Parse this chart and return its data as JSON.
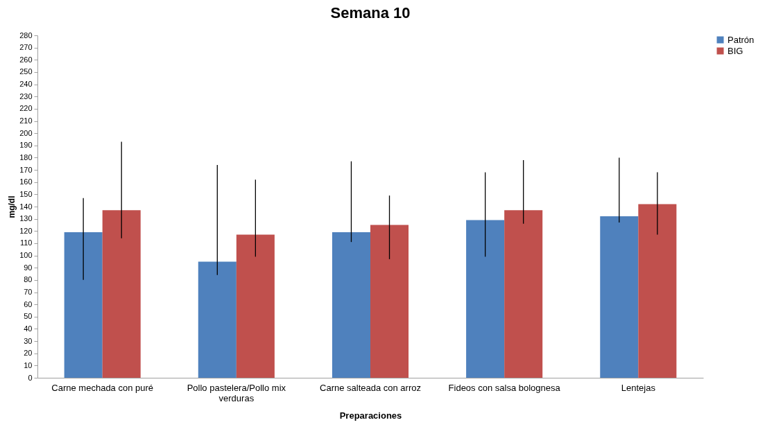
{
  "chart_data": {
    "type": "bar",
    "title": "Semana 10",
    "xlabel": "Preparaciones",
    "ylabel": "mg/dl",
    "categories": [
      "Carne mechada con puré",
      "Pollo pastelera/Pollo mix verduras",
      "Carne salteada con arroz",
      "Fideos con salsa bolognesa",
      "Lentejas"
    ],
    "series": [
      {
        "name": "Patrón",
        "color": "#4f81bd",
        "values": [
          119,
          95,
          119,
          129,
          132
        ],
        "errors": [
          [
            80,
            147
          ],
          [
            84,
            174
          ],
          [
            111,
            177
          ],
          [
            99,
            168
          ],
          [
            127,
            180
          ]
        ]
      },
      {
        "name": "BIG",
        "color": "#c0504d",
        "values": [
          137,
          117,
          125,
          137,
          142
        ],
        "errors": [
          [
            114,
            193
          ],
          [
            99,
            162
          ],
          [
            97,
            149
          ],
          [
            126,
            178
          ],
          [
            117,
            168
          ]
        ]
      }
    ],
    "ylim": [
      0,
      280
    ],
    "yticks": [
      0,
      10,
      20,
      30,
      40,
      50,
      60,
      70,
      80,
      90,
      100,
      110,
      120,
      130,
      140,
      150,
      160,
      170,
      180,
      190,
      200,
      210,
      220,
      230,
      240,
      250,
      260,
      270,
      280
    ],
    "grid": false,
    "legend": "right"
  }
}
